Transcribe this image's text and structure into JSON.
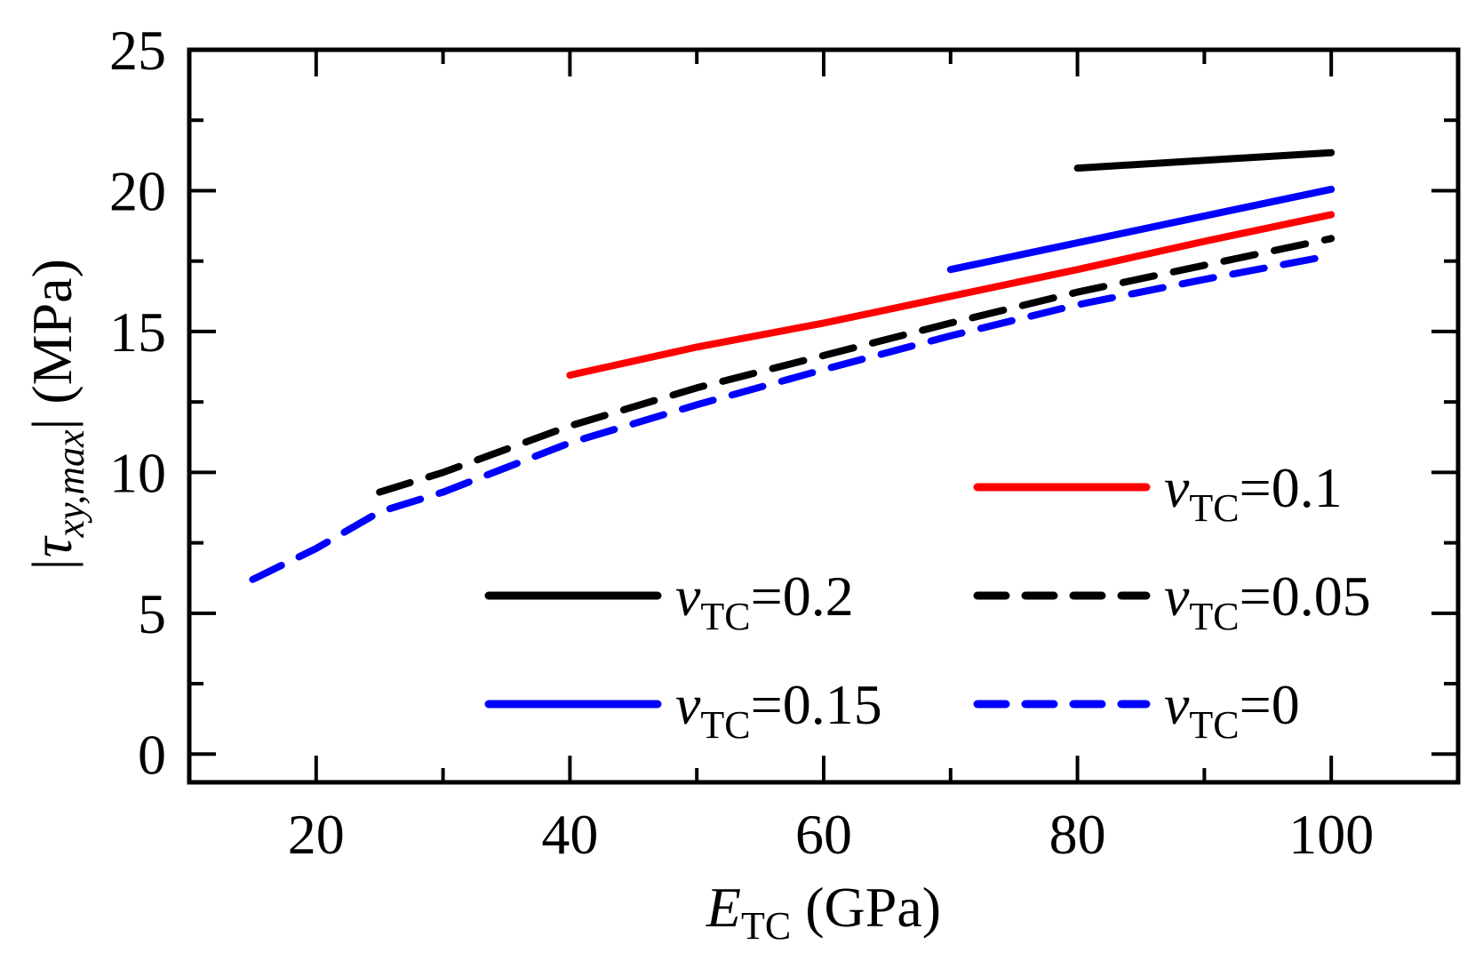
{
  "chart_data": {
    "type": "line",
    "title": "",
    "xlabel": {
      "symbol": "E",
      "subscript": "TC",
      "unit": " (GPa)"
    },
    "ylabel": {
      "prefix": "|τ",
      "subscript": "xy,max",
      "suffix": "| (MPa)"
    },
    "xlim": [
      10,
      110
    ],
    "ylim": [
      -1,
      25
    ],
    "x_ticks": [
      20,
      40,
      60,
      80,
      100
    ],
    "x_minor_ticks": [
      30,
      50,
      70,
      90
    ],
    "y_ticks": [
      0,
      5,
      10,
      15,
      20,
      25
    ],
    "y_minor_ticks": [
      2.5,
      7.5,
      12.5,
      17.5,
      22.5
    ],
    "grid": false,
    "series": [
      {
        "name": "v_TC=0.2",
        "color": "#000000",
        "dash": "solid",
        "x": [
          80,
          100
        ],
        "y": [
          20.8,
          21.35
        ]
      },
      {
        "name": "v_TC=0.15",
        "color": "#0000ff",
        "dash": "solid",
        "x": [
          70,
          100
        ],
        "y": [
          17.2,
          20.05
        ]
      },
      {
        "name": "v_TC=0.1",
        "color": "#ff0000",
        "dash": "solid",
        "x": [
          40,
          50,
          60,
          70,
          80,
          90,
          100
        ],
        "y": [
          13.45,
          14.45,
          15.3,
          16.25,
          17.2,
          18.2,
          19.15
        ]
      },
      {
        "name": "v_TC=0.05",
        "color": "#000000",
        "dash": "dashed",
        "x": [
          25,
          30,
          40,
          50,
          60,
          70,
          80,
          90,
          100
        ],
        "y": [
          9.3,
          10.0,
          11.65,
          13.0,
          14.15,
          15.3,
          16.4,
          17.35,
          18.3
        ]
      },
      {
        "name": "v_TC=0",
        "color": "#0000ff",
        "dash": "dashed",
        "x": [
          15,
          20,
          25,
          30,
          40,
          50,
          60,
          70,
          80,
          90,
          100
        ],
        "y": [
          6.2,
          7.3,
          8.6,
          9.3,
          11.05,
          12.4,
          13.65,
          14.85,
          15.95,
          16.85,
          17.7
        ]
      }
    ],
    "legend": [
      {
        "symbol": "v",
        "subscript": "TC",
        "value": "=0.1",
        "color": "#ff0000",
        "dash": "solid"
      },
      {
        "symbol": "v",
        "subscript": "TC",
        "value": "=0.2",
        "color": "#000000",
        "dash": "solid"
      },
      {
        "symbol": "v",
        "subscript": "TC",
        "value": "=0.05",
        "color": "#000000",
        "dash": "dashed"
      },
      {
        "symbol": "v",
        "subscript": "TC",
        "value": "=0.15",
        "color": "#0000ff",
        "dash": "solid"
      },
      {
        "symbol": "v",
        "subscript": "TC",
        "value": "=0",
        "color": "#0000ff",
        "dash": "dashed"
      }
    ],
    "legend_position": "lower-right"
  }
}
